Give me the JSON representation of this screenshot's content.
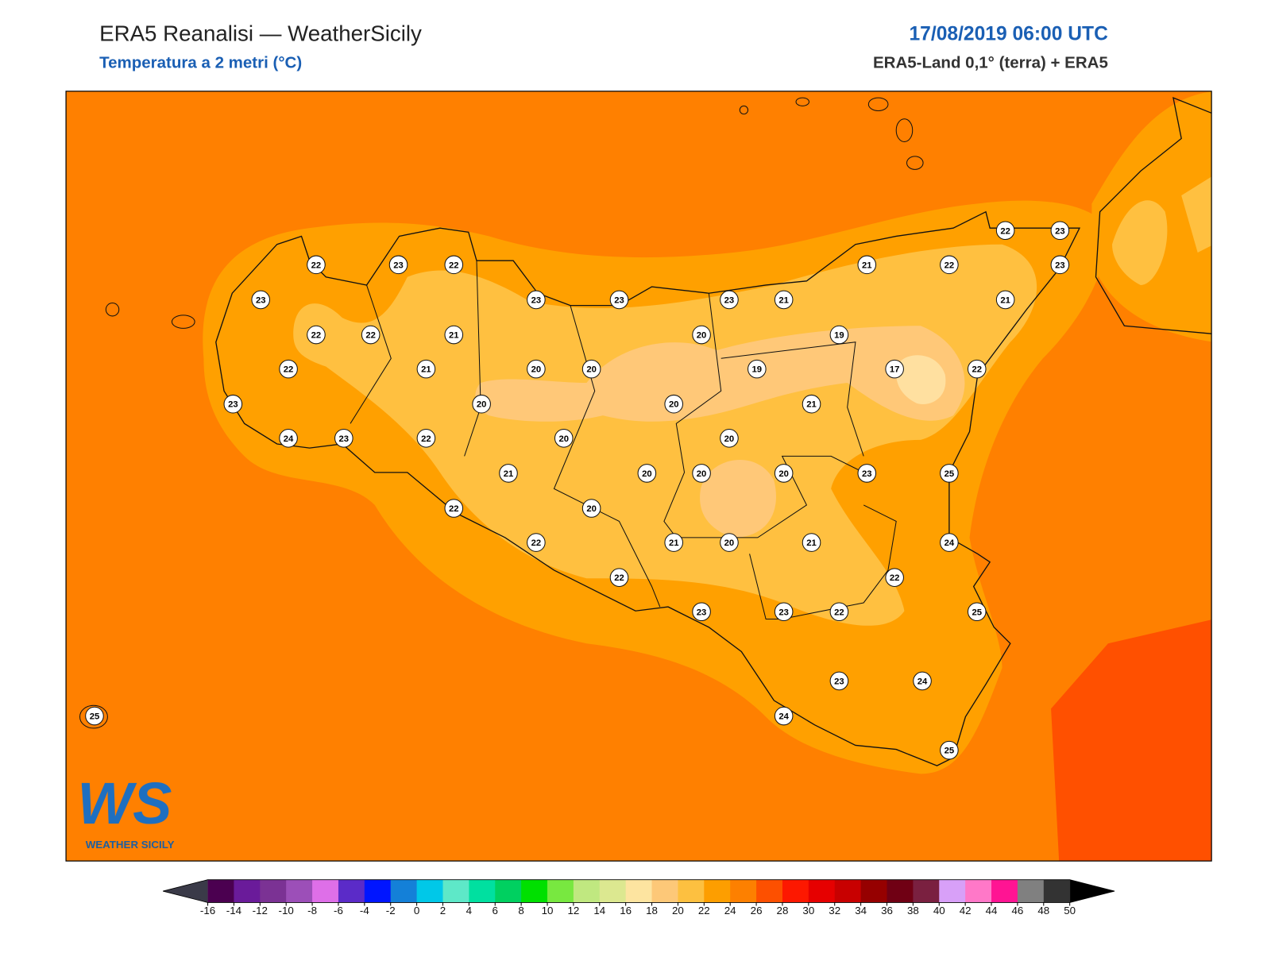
{
  "header": {
    "title": "ERA5 Reanalisi — WeatherSicily",
    "subtitle": "Temperatura a 2 metri (°C)",
    "date": "17/08/2019 06:00 UTC",
    "source": "ERA5-Land 0,1° (terra) + ERA5"
  },
  "stations": [
    22,
    23,
    22,
    23,
    23,
    23,
    23,
    21,
    21,
    22,
    22,
    23,
    23,
    21,
    22,
    22,
    21,
    20,
    19,
    22,
    21,
    20,
    20,
    19,
    17,
    22,
    23,
    20,
    20,
    21,
    24,
    23,
    22,
    20,
    20,
    21,
    20,
    20,
    20,
    23,
    25,
    22,
    20,
    22,
    21,
    20,
    21,
    24,
    22,
    22,
    23,
    23,
    22,
    25,
    23,
    24,
    24,
    25,
    25
  ],
  "colorbar": {
    "ticks": [
      -16,
      -14,
      -12,
      -10,
      -8,
      -6,
      -4,
      -2,
      0,
      2,
      4,
      6,
      8,
      10,
      12,
      14,
      16,
      18,
      20,
      22,
      24,
      26,
      28,
      30,
      32,
      34,
      36,
      38,
      40,
      42,
      44,
      46,
      48,
      50
    ],
    "colors": [
      "#4b0050",
      "#6a1b9a",
      "#7b3294",
      "#9c4fb8",
      "#de6fe8",
      "#5b2bc8",
      "#0015ff",
      "#1480d8",
      "#00c8e8",
      "#5ee8c8",
      "#00e0a0",
      "#00d060",
      "#00e000",
      "#78e840",
      "#c0e880",
      "#dce890",
      "#fde4a0",
      "#fdc878",
      "#fdc040",
      "#fd9e00",
      "#fd8000",
      "#fd5000",
      "#fd1800",
      "#e60000",
      "#c80000",
      "#960000",
      "#700014",
      "#7a2040",
      "#d8a0f8",
      "#ff78c8",
      "#ff1493",
      "#808080",
      "#333333"
    ],
    "under": "#3a3a48",
    "over": "#000000"
  },
  "logo": {
    "mark": "WS",
    "name": "WEATHER SICILY"
  }
}
